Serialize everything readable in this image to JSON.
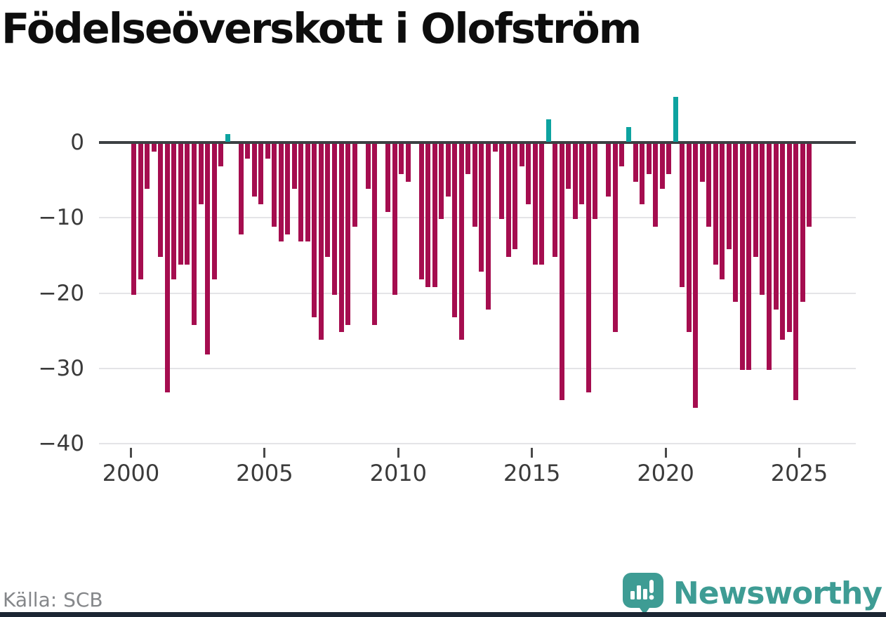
{
  "title": "Födelseöverskott i Olofström",
  "source": "Källa: SCB",
  "logo": {
    "text": "Newsworthy"
  },
  "colors": {
    "bar_negative": "#a50d4f",
    "bar_positive": "#0da3a0",
    "zero_line": "#3c4043",
    "gridline": "#e4e4e7",
    "logo_teal": "#3e9c94"
  },
  "chart_data": {
    "type": "bar",
    "title": "Födelseöverskott i Olofström",
    "frequency": "quarterly",
    "start_period": "2000 Q1",
    "end_period": "2025 Q2",
    "ylim": [
      -40,
      7
    ],
    "grid": true,
    "y_ticks": [
      {
        "value": 0,
        "label": "0"
      },
      {
        "value": -10,
        "label": "−10"
      },
      {
        "value": -20,
        "label": "−20"
      },
      {
        "value": -30,
        "label": "−30"
      },
      {
        "value": -40,
        "label": "−40"
      }
    ],
    "x_tick_labels": [
      "2000",
      "2005",
      "2010",
      "2015",
      "2020",
      "2025"
    ],
    "values": [
      -20,
      -18,
      -6,
      -1,
      -15,
      -33,
      -18,
      -16,
      -16,
      -24,
      -8,
      -28,
      -18,
      -3,
      1,
      0,
      -12,
      -2,
      -7,
      -8,
      -2,
      -11,
      -13,
      -12,
      -6,
      -13,
      -13,
      -23,
      -26,
      -15,
      -20,
      -25,
      -24,
      -11,
      0,
      -6,
      -24,
      0,
      -9,
      -20,
      -4,
      -5,
      0,
      -18,
      -19,
      -19,
      -10,
      -7,
      -23,
      -26,
      -4,
      -11,
      -17,
      -22,
      -1,
      -10,
      -15,
      -14,
      -3,
      -8,
      -16,
      -16,
      3,
      -15,
      -34,
      -6,
      -10,
      -8,
      -33,
      -10,
      0,
      -7,
      -25,
      -3,
      2,
      -5,
      -8,
      -4,
      -11,
      -6,
      -4,
      6,
      -19,
      -25,
      -35,
      -5,
      -11,
      -16,
      -18,
      -14,
      -21,
      -30,
      -30,
      -15,
      -20,
      -30,
      -22,
      -26,
      -25,
      -34,
      -21,
      -11
    ]
  }
}
